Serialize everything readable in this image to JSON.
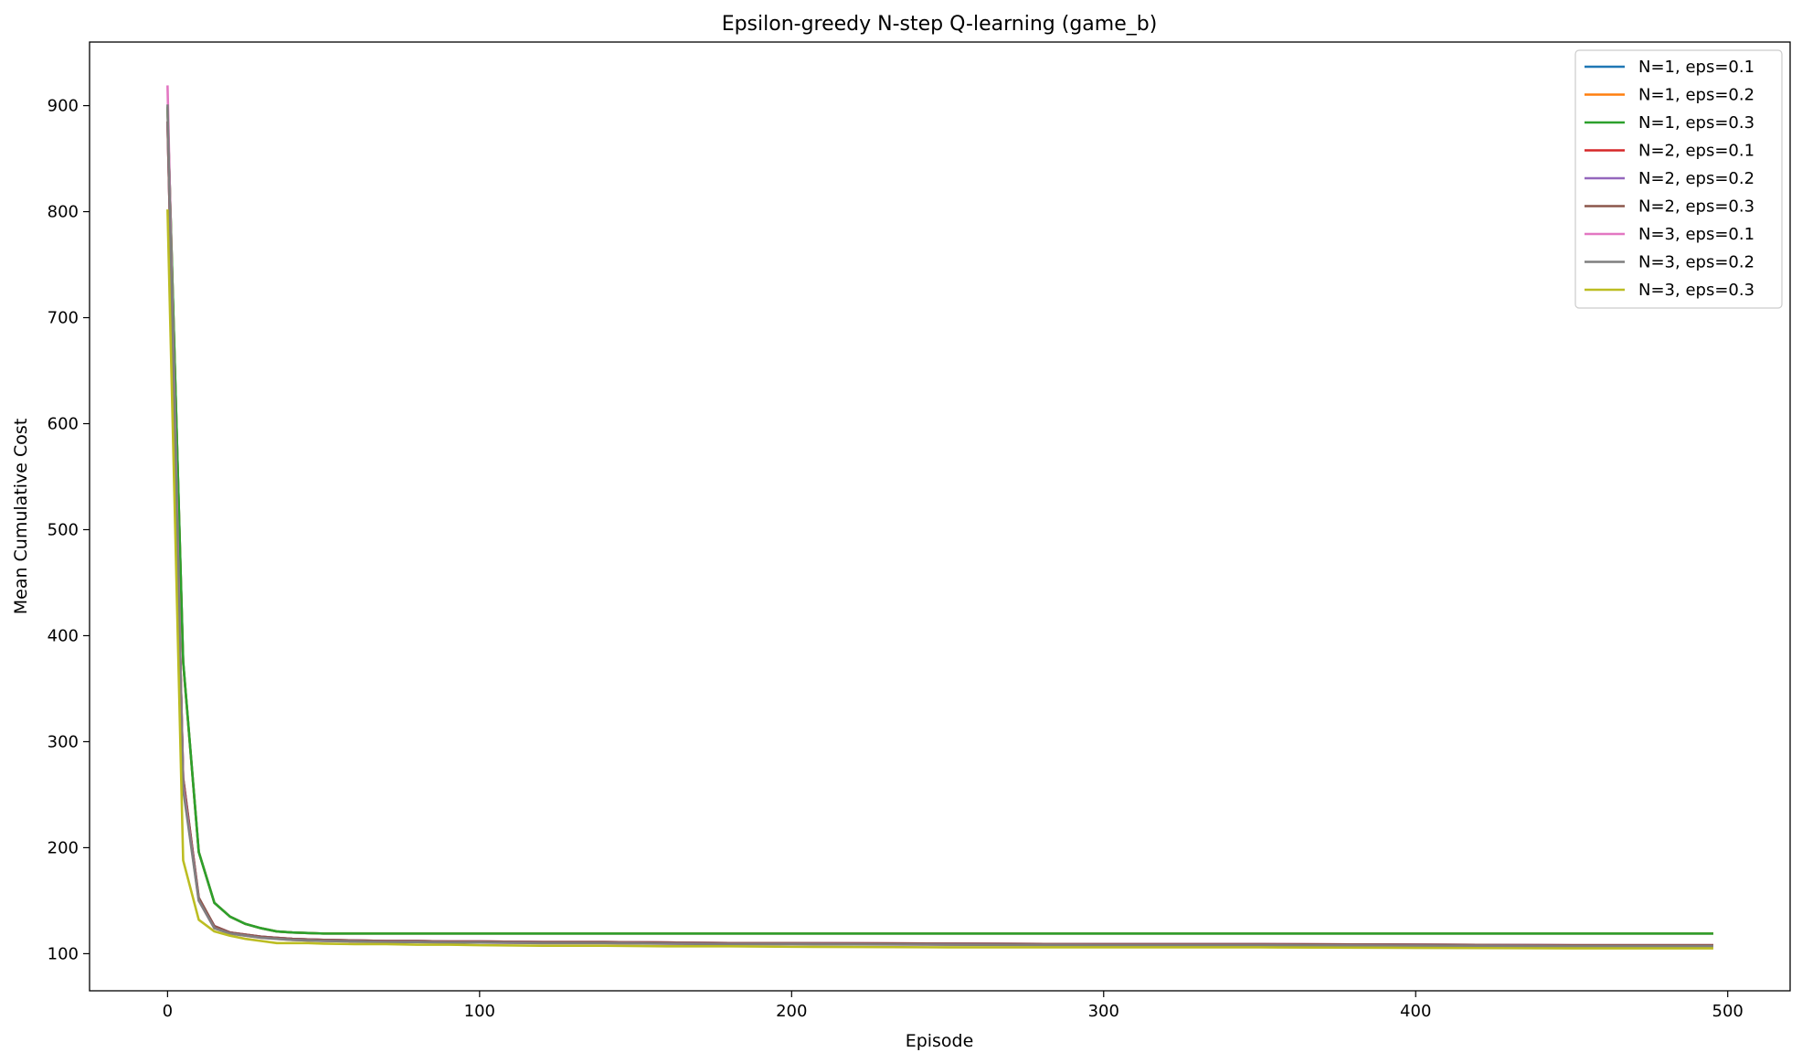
{
  "chart_data": {
    "type": "line",
    "title": "Epsilon-greedy N-step Q-learning (game_b)",
    "xlabel": "Episode",
    "ylabel": "Mean Cumulative Cost",
    "xlim": [
      -25,
      520
    ],
    "ylim": [
      65,
      960
    ],
    "xticks": [
      0,
      100,
      200,
      300,
      400,
      500
    ],
    "yticks": [
      100,
      200,
      300,
      400,
      500,
      600,
      700,
      800,
      900
    ],
    "grid": false,
    "legend_position": "top-right",
    "x": [
      0,
      5,
      10,
      15,
      20,
      25,
      30,
      35,
      40,
      45,
      50,
      60,
      70,
      80,
      90,
      100,
      120,
      140,
      160,
      180,
      200,
      250,
      300,
      350,
      400,
      450,
      495
    ],
    "series": [
      {
        "name": "N=1, eps=0.1",
        "color": "#1f77b4",
        "values": [
          897,
          375,
          196,
          148,
          135,
          128,
          124,
          121,
          120,
          119.5,
          119,
          119,
          119,
          119,
          119,
          119,
          119,
          119,
          119,
          119,
          119,
          119,
          119,
          119,
          119,
          119,
          119
        ]
      },
      {
        "name": "N=1, eps=0.2",
        "color": "#ff7f0e",
        "values": [
          897,
          375,
          196,
          148,
          135,
          128,
          124,
          121,
          120,
          119.5,
          119,
          119,
          119,
          119,
          119,
          119,
          119,
          119,
          119,
          119,
          119,
          119,
          119,
          119,
          119,
          119,
          119
        ]
      },
      {
        "name": "N=1, eps=0.3",
        "color": "#2ca02c",
        "values": [
          898,
          376,
          196,
          148,
          135,
          128,
          124,
          121,
          120,
          119.5,
          119,
          119,
          119,
          119,
          119,
          119,
          119,
          119,
          119,
          119,
          119,
          119,
          119,
          119,
          119,
          119,
          119
        ]
      },
      {
        "name": "N=2, eps=0.1",
        "color": "#d62728",
        "values": [
          884,
          265,
          152,
          126,
          120,
          118,
          116,
          115,
          114,
          113.5,
          113,
          112.5,
          112,
          112,
          111.5,
          111.5,
          111,
          111,
          110.5,
          110,
          110,
          109.5,
          109,
          109,
          108.5,
          108,
          108
        ]
      },
      {
        "name": "N=2, eps=0.2",
        "color": "#9467bd",
        "values": [
          884,
          265,
          152,
          126,
          120,
          118,
          116,
          115,
          114,
          113.5,
          113,
          112.5,
          112,
          112,
          111.5,
          111.5,
          111,
          111,
          110.5,
          110,
          110,
          109.5,
          109,
          109,
          108.5,
          108,
          108
        ]
      },
      {
        "name": "N=2, eps=0.3",
        "color": "#8c564b",
        "values": [
          884,
          266,
          153,
          126,
          120,
          118,
          116,
          115,
          114,
          113.5,
          113,
          112.5,
          112,
          112,
          111.5,
          111.5,
          111,
          111,
          110.5,
          110,
          110,
          109.5,
          109,
          109,
          108.5,
          108,
          108
        ]
      },
      {
        "name": "N=3, eps=0.1",
        "color": "#e377c2",
        "values": [
          918,
          258,
          150,
          124,
          119,
          117,
          115,
          114,
          113,
          112.5,
          112,
          111.5,
          111,
          111,
          110.5,
          110.5,
          110,
          110,
          109.5,
          109,
          109,
          108.5,
          108,
          108,
          107.5,
          107,
          107
        ]
      },
      {
        "name": "N=3, eps=0.2",
        "color": "#7f7f7f",
        "values": [
          900,
          255,
          150,
          124,
          119,
          117,
          115,
          114,
          113,
          112.5,
          112,
          111.5,
          111,
          111,
          110.5,
          110.5,
          110,
          110,
          109.5,
          109,
          109,
          108.5,
          108,
          108,
          107.5,
          107,
          107
        ]
      },
      {
        "name": "N=3, eps=0.3",
        "color": "#bcbd22",
        "values": [
          801,
          188,
          132,
          121,
          117,
          114,
          112,
          110,
          110,
          110,
          109.5,
          109,
          109,
          108.5,
          108.5,
          108,
          107.5,
          107.5,
          107,
          107,
          106.5,
          106,
          106,
          106,
          105.5,
          105,
          105
        ]
      }
    ]
  }
}
